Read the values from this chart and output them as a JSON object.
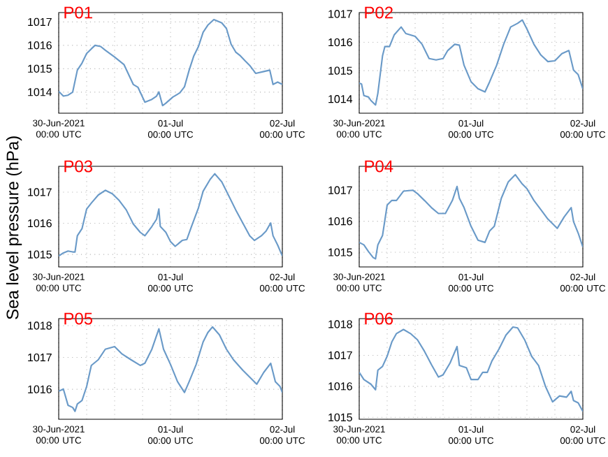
{
  "chart_data": [
    {
      "type": "line",
      "title": "P01",
      "color": "#6a9ac8",
      "grid": true,
      "xlim": [
        "2021-06-30T00:00",
        "2021-07-02T00:00"
      ],
      "ylim": [
        1013.1,
        1017.4
      ],
      "yticks": [
        1014,
        1015,
        1016,
        1017
      ],
      "xticks": [
        {
          "value": "2021-06-30T00:00",
          "label": "30-Jun-2021 00:00 UTC"
        },
        {
          "value": "2021-06-30T06:00",
          "label": null
        },
        {
          "value": "2021-06-30T12:00",
          "label": null
        },
        {
          "value": "2021-06-30T18:00",
          "label": null
        },
        {
          "value": "2021-07-01T00:00",
          "label": "01-Jul 00:00 UTC"
        },
        {
          "value": "2021-07-01T06:00",
          "label": null
        },
        {
          "value": "2021-07-01T12:00",
          "label": null
        },
        {
          "value": "2021-07-01T18:00",
          "label": null
        },
        {
          "value": "2021-07-02T00:00",
          "label": "02-Jul 00:00 UTC"
        }
      ],
      "x": [
        "2021-06-30T00:00",
        "2021-06-30T01:00",
        "2021-06-30T02:00",
        "2021-06-30T03:00",
        "2021-06-30T04:00",
        "2021-06-30T05:00",
        "2021-06-30T06:00",
        "2021-06-30T07:00",
        "2021-06-30T07:48",
        "2021-06-30T09:00",
        "2021-06-30T10:00",
        "2021-06-30T12:00",
        "2021-06-30T14:00",
        "2021-06-30T16:00",
        "2021-06-30T17:00",
        "2021-06-30T18:30",
        "2021-06-30T20:00",
        "2021-06-30T21:00",
        "2021-06-30T21:30",
        "2021-06-30T22:18",
        "2021-06-30T23:00",
        "2021-07-01T00:30",
        "2021-07-01T02:00",
        "2021-07-01T03:00",
        "2021-07-01T04:00",
        "2021-07-01T05:00",
        "2021-07-01T06:00",
        "2021-07-01T07:00",
        "2021-07-01T08:00",
        "2021-07-01T09:18",
        "2021-07-01T11:00",
        "2021-07-01T12:00",
        "2021-07-01T13:00",
        "2021-07-01T14:00",
        "2021-07-01T15:00",
        "2021-07-01T16:00",
        "2021-07-01T17:00",
        "2021-07-01T18:18",
        "2021-07-01T20:00",
        "2021-07-01T21:18",
        "2021-07-01T22:00",
        "2021-07-01T23:00",
        "2021-07-02T00:00"
      ],
      "values": [
        1014.03,
        1013.83,
        1013.87,
        1014.0,
        1014.94,
        1015.24,
        1015.65,
        1015.85,
        1016.0,
        1015.95,
        1015.79,
        1015.5,
        1015.18,
        1014.33,
        1014.21,
        1013.57,
        1013.69,
        1013.83,
        1014.01,
        1013.42,
        1013.53,
        1013.79,
        1013.97,
        1014.23,
        1014.94,
        1015.55,
        1015.95,
        1016.56,
        1016.86,
        1017.1,
        1016.96,
        1016.72,
        1016.05,
        1015.71,
        1015.55,
        1015.34,
        1015.14,
        1014.8,
        1014.88,
        1014.94,
        1014.33,
        1014.43,
        1014.33
      ]
    },
    {
      "type": "line",
      "title": "P02",
      "color": "#6a9ac8",
      "grid": true,
      "xlim": [
        "2021-06-30T00:00",
        "2021-07-02T00:00"
      ],
      "ylim": [
        1013.5,
        1017.05
      ],
      "yticks": [
        1014,
        1015,
        1016,
        1017
      ],
      "xticks": [
        {
          "value": "2021-06-30T00:00",
          "label": "30-Jun-2021 00:00 UTC"
        },
        {
          "value": "2021-06-30T06:00",
          "label": null
        },
        {
          "value": "2021-06-30T12:00",
          "label": null
        },
        {
          "value": "2021-06-30T18:00",
          "label": null
        },
        {
          "value": "2021-07-01T00:00",
          "label": "01-Jul 00:00 UTC"
        },
        {
          "value": "2021-07-01T06:00",
          "label": null
        },
        {
          "value": "2021-07-01T12:00",
          "label": null
        },
        {
          "value": "2021-07-01T18:00",
          "label": null
        },
        {
          "value": "2021-07-02T00:00",
          "label": "02-Jul 00:00 UTC"
        }
      ],
      "x": [
        "2021-06-30T00:00",
        "2021-06-30T00:30",
        "2021-06-30T01:00",
        "2021-06-30T02:00",
        "2021-06-30T02:30",
        "2021-06-30T03:30",
        "2021-06-30T04:00",
        "2021-06-30T05:00",
        "2021-06-30T05:30",
        "2021-06-30T06:30",
        "2021-06-30T07:30",
        "2021-06-30T09:00",
        "2021-06-30T10:00",
        "2021-06-30T12:00",
        "2021-06-30T13:30",
        "2021-06-30T15:00",
        "2021-06-30T16:30",
        "2021-06-30T18:00",
        "2021-06-30T19:00",
        "2021-06-30T20:30",
        "2021-06-30T21:30",
        "2021-06-30T22:30",
        "2021-07-01T00:00",
        "2021-07-01T01:30",
        "2021-07-01T03:00",
        "2021-07-01T04:00",
        "2021-07-01T05:30",
        "2021-07-01T07:00",
        "2021-07-01T08:30",
        "2021-07-01T10:00",
        "2021-07-01T11:00",
        "2021-07-01T12:00",
        "2021-07-01T13:30",
        "2021-07-01T15:00",
        "2021-07-01T16:30",
        "2021-07-01T18:00",
        "2021-07-01T19:30",
        "2021-07-01T21:00",
        "2021-07-01T22:00",
        "2021-07-01T23:00",
        "2021-07-02T00:00"
      ],
      "values": [
        1014.56,
        1014.53,
        1014.12,
        1014.07,
        1013.95,
        1013.79,
        1014.2,
        1015.52,
        1015.85,
        1015.85,
        1016.26,
        1016.54,
        1016.31,
        1016.21,
        1015.93,
        1015.43,
        1015.38,
        1015.43,
        1015.71,
        1015.93,
        1015.9,
        1015.19,
        1014.61,
        1014.36,
        1014.25,
        1014.61,
        1015.19,
        1015.93,
        1016.54,
        1016.67,
        1016.79,
        1016.47,
        1015.93,
        1015.55,
        1015.32,
        1015.35,
        1015.6,
        1015.71,
        1015.02,
        1014.86,
        1014.36
      ]
    },
    {
      "type": "line",
      "title": "P03",
      "ylabel": "Sea level pressure (hPa)",
      "color": "#6a9ac8",
      "grid": true,
      "xlim": [
        "2021-06-30T00:00",
        "2021-07-02T00:00"
      ],
      "ylim": [
        1014.6,
        1017.83
      ],
      "yticks": [
        1015,
        1016,
        1017
      ],
      "xticks": [
        {
          "value": "2021-06-30T00:00",
          "label": "30-Jun-2021 00:00 UTC"
        },
        {
          "value": "2021-06-30T06:00",
          "label": null
        },
        {
          "value": "2021-06-30T12:00",
          "label": null
        },
        {
          "value": "2021-06-30T18:00",
          "label": null
        },
        {
          "value": "2021-07-01T00:00",
          "label": "01-Jul 00:00 UTC"
        },
        {
          "value": "2021-07-01T06:00",
          "label": null
        },
        {
          "value": "2021-07-01T12:00",
          "label": null
        },
        {
          "value": "2021-07-01T18:00",
          "label": null
        },
        {
          "value": "2021-07-02T00:00",
          "label": "02-Jul 00:00 UTC"
        }
      ],
      "x": [
        "2021-06-30T00:00",
        "2021-06-30T01:00",
        "2021-06-30T02:00",
        "2021-06-30T03:00",
        "2021-06-30T03:30",
        "2021-06-30T04:00",
        "2021-06-30T05:00",
        "2021-06-30T06:00",
        "2021-06-30T07:00",
        "2021-06-30T08:30",
        "2021-06-30T10:00",
        "2021-06-30T11:30",
        "2021-06-30T13:00",
        "2021-06-30T14:30",
        "2021-06-30T16:00",
        "2021-06-30T17:30",
        "2021-06-30T18:30",
        "2021-06-30T20:00",
        "2021-06-30T21:00",
        "2021-06-30T21:30",
        "2021-06-30T21:48",
        "2021-06-30T23:00",
        "2021-07-01T00:00",
        "2021-07-01T01:00",
        "2021-07-01T02:30",
        "2021-07-01T03:30",
        "2021-07-01T04:30",
        "2021-07-01T06:00",
        "2021-07-01T07:00",
        "2021-07-01T08:30",
        "2021-07-01T09:30",
        "2021-07-01T11:00",
        "2021-07-01T12:30",
        "2021-07-01T14:00",
        "2021-07-01T15:30",
        "2021-07-01T17:00",
        "2021-07-01T18:00",
        "2021-07-01T19:30",
        "2021-07-01T20:30",
        "2021-07-01T21:30",
        "2021-07-01T22:00",
        "2021-07-01T23:00",
        "2021-07-02T00:00"
      ],
      "values": [
        1014.95,
        1015.05,
        1015.11,
        1015.08,
        1015.08,
        1015.6,
        1015.83,
        1016.46,
        1016.65,
        1016.91,
        1017.06,
        1016.95,
        1016.73,
        1016.43,
        1015.98,
        1015.71,
        1015.6,
        1015.9,
        1016.13,
        1016.46,
        1015.9,
        1015.71,
        1015.41,
        1015.26,
        1015.45,
        1015.48,
        1015.9,
        1016.5,
        1017.03,
        1017.41,
        1017.59,
        1017.33,
        1016.88,
        1016.43,
        1016.01,
        1015.6,
        1015.45,
        1015.6,
        1015.75,
        1016.01,
        1015.6,
        1015.3,
        1014.95
      ]
    },
    {
      "type": "line",
      "title": "P04",
      "color": "#6a9ac8",
      "grid": true,
      "xlim": [
        "2021-06-30T00:00",
        "2021-07-02T00:00"
      ],
      "ylim": [
        1014.53,
        1017.77
      ],
      "yticks": [
        1015,
        1016,
        1017
      ],
      "xticks": [
        {
          "value": "2021-06-30T00:00",
          "label": "30-Jun-2021 00:00 UTC"
        },
        {
          "value": "2021-06-30T06:00",
          "label": null
        },
        {
          "value": "2021-06-30T12:00",
          "label": null
        },
        {
          "value": "2021-06-30T18:00",
          "label": null
        },
        {
          "value": "2021-07-01T00:00",
          "label": "01-Jul 00:00 UTC"
        },
        {
          "value": "2021-07-01T06:00",
          "label": null
        },
        {
          "value": "2021-07-01T12:00",
          "label": null
        },
        {
          "value": "2021-07-01T18:00",
          "label": null
        },
        {
          "value": "2021-07-02T00:00",
          "label": "02-Jul 00:00 UTC"
        }
      ],
      "x": [
        "2021-06-30T00:00",
        "2021-06-30T01:00",
        "2021-06-30T02:00",
        "2021-06-30T03:00",
        "2021-06-30T03:30",
        "2021-06-30T04:00",
        "2021-06-30T05:00",
        "2021-06-30T06:00",
        "2021-06-30T07:00",
        "2021-06-30T08:00",
        "2021-06-30T09:30",
        "2021-06-30T11:30",
        "2021-06-30T12:30",
        "2021-06-30T14:00",
        "2021-06-30T15:30",
        "2021-06-30T17:00",
        "2021-06-30T18:30",
        "2021-06-30T20:00",
        "2021-06-30T21:00",
        "2021-06-30T21:30",
        "2021-06-30T22:30",
        "2021-07-01T00:00",
        "2021-07-01T01:30",
        "2021-07-01T03:00",
        "2021-07-01T04:00",
        "2021-07-01T05:00",
        "2021-07-01T06:30",
        "2021-07-01T08:00",
        "2021-07-01T09:30",
        "2021-07-01T11:00",
        "2021-07-01T12:00",
        "2021-07-01T13:30",
        "2021-07-01T15:00",
        "2021-07-01T16:30",
        "2021-07-01T18:30",
        "2021-07-01T20:00",
        "2021-07-01T21:30",
        "2021-07-01T22:00",
        "2021-07-01T23:00",
        "2021-07-02T00:00"
      ],
      "values": [
        1015.32,
        1015.24,
        1015.02,
        1014.83,
        1014.79,
        1015.24,
        1015.54,
        1016.52,
        1016.67,
        1016.67,
        1016.97,
        1017.0,
        1016.89,
        1016.67,
        1016.44,
        1016.25,
        1016.25,
        1016.67,
        1017.12,
        1016.74,
        1016.44,
        1015.84,
        1015.39,
        1015.32,
        1015.69,
        1015.84,
        1016.74,
        1017.27,
        1017.5,
        1017.2,
        1017.05,
        1016.67,
        1016.37,
        1016.07,
        1015.77,
        1016.14,
        1016.44,
        1015.99,
        1015.62,
        1015.17
      ]
    },
    {
      "type": "line",
      "title": "P05",
      "color": "#6a9ac8",
      "grid": true,
      "xlim": [
        "2021-06-30T00:00",
        "2021-07-02T00:00"
      ],
      "ylim": [
        1015.06,
        1018.22
      ],
      "yticks": [
        1016,
        1017,
        1018
      ],
      "xticks": [
        {
          "value": "2021-06-30T00:00",
          "label": "30-Jun-2021 00:00 UTC"
        },
        {
          "value": "2021-06-30T06:00",
          "label": null
        },
        {
          "value": "2021-06-30T12:00",
          "label": null
        },
        {
          "value": "2021-06-30T18:00",
          "label": null
        },
        {
          "value": "2021-07-01T00:00",
          "label": "01-Jul 00:00 UTC"
        },
        {
          "value": "2021-07-01T06:00",
          "label": null
        },
        {
          "value": "2021-07-01T12:00",
          "label": null
        },
        {
          "value": "2021-07-01T18:00",
          "label": null
        },
        {
          "value": "2021-07-02T00:00",
          "label": "02-Jul 00:00 UTC"
        }
      ],
      "x": [
        "2021-06-30T00:00",
        "2021-06-30T01:00",
        "2021-06-30T02:00",
        "2021-06-30T03:00",
        "2021-06-30T03:30",
        "2021-06-30T04:00",
        "2021-06-30T05:00",
        "2021-06-30T06:00",
        "2021-06-30T07:00",
        "2021-06-30T08:30",
        "2021-06-30T10:00",
        "2021-06-30T12:00",
        "2021-06-30T13:30",
        "2021-06-30T15:30",
        "2021-06-30T17:30",
        "2021-06-30T18:30",
        "2021-06-30T20:00",
        "2021-06-30T21:30",
        "2021-06-30T22:30",
        "2021-07-01T00:00",
        "2021-07-01T01:30",
        "2021-07-01T03:00",
        "2021-07-01T04:00",
        "2021-07-01T05:30",
        "2021-07-01T07:00",
        "2021-07-01T08:00",
        "2021-07-01T09:00",
        "2021-07-01T10:30",
        "2021-07-01T12:00",
        "2021-07-01T13:30",
        "2021-07-01T15:30",
        "2021-07-01T17:00",
        "2021-07-01T18:30",
        "2021-07-01T20:00",
        "2021-07-01T21:30",
        "2021-07-01T22:30",
        "2021-07-01T23:30",
        "2021-07-02T00:00"
      ],
      "values": [
        1015.94,
        1016.01,
        1015.5,
        1015.43,
        1015.31,
        1015.54,
        1015.65,
        1016.09,
        1016.75,
        1016.93,
        1017.26,
        1017.34,
        1017.12,
        1016.93,
        1016.75,
        1016.82,
        1017.26,
        1017.9,
        1017.26,
        1016.78,
        1016.24,
        1015.9,
        1016.24,
        1016.78,
        1017.49,
        1017.78,
        1017.96,
        1017.71,
        1017.26,
        1016.93,
        1016.6,
        1016.38,
        1016.16,
        1016.53,
        1016.82,
        1016.24,
        1016.09,
        1015.9
      ]
    },
    {
      "type": "line",
      "title": "P06",
      "color": "#6a9ac8",
      "grid": true,
      "xlim": [
        "2021-06-30T00:00",
        "2021-07-02T00:00"
      ],
      "ylim": [
        1014.94,
        1018.18
      ],
      "yticks": [
        1015,
        1016,
        1017,
        1018
      ],
      "xticks": [
        {
          "value": "2021-06-30T00:00",
          "label": "30-Jun-2021 00:00 UTC"
        },
        {
          "value": "2021-06-30T06:00",
          "label": null
        },
        {
          "value": "2021-06-30T12:00",
          "label": null
        },
        {
          "value": "2021-06-30T18:00",
          "label": null
        },
        {
          "value": "2021-07-01T00:00",
          "label": "01-Jul 00:00 UTC"
        },
        {
          "value": "2021-07-01T06:00",
          "label": null
        },
        {
          "value": "2021-07-01T12:00",
          "label": null
        },
        {
          "value": "2021-07-01T18:00",
          "label": null
        },
        {
          "value": "2021-07-02T00:00",
          "label": "02-Jul 00:00 UTC"
        }
      ],
      "x": [
        "2021-06-30T00:00",
        "2021-06-30T01:00",
        "2021-06-30T02:30",
        "2021-06-30T03:30",
        "2021-06-30T04:00",
        "2021-06-30T05:00",
        "2021-06-30T06:00",
        "2021-06-30T07:00",
        "2021-06-30T08:00",
        "2021-06-30T09:30",
        "2021-06-30T11:00",
        "2021-06-30T12:30",
        "2021-06-30T14:00",
        "2021-06-30T15:30",
        "2021-06-30T17:00",
        "2021-06-30T18:00",
        "2021-06-30T19:30",
        "2021-06-30T21:00",
        "2021-06-30T21:30",
        "2021-06-30T23:00",
        "2021-07-01T00:00",
        "2021-07-01T01:30",
        "2021-07-01T02:30",
        "2021-07-01T03:30",
        "2021-07-01T04:30",
        "2021-07-01T06:00",
        "2021-07-01T07:30",
        "2021-07-01T09:00",
        "2021-07-01T10:00",
        "2021-07-01T11:30",
        "2021-07-01T13:00",
        "2021-07-01T14:30",
        "2021-07-01T16:00",
        "2021-07-01T17:30",
        "2021-07-01T19:00",
        "2021-07-01T20:30",
        "2021-07-01T21:30",
        "2021-07-01T22:00",
        "2021-07-01T23:00",
        "2021-07-02T00:00"
      ],
      "values": [
        1016.45,
        1016.22,
        1016.07,
        1015.89,
        1016.52,
        1016.64,
        1016.97,
        1017.43,
        1017.7,
        1017.83,
        1017.7,
        1017.5,
        1017.13,
        1016.7,
        1016.3,
        1016.37,
        1016.75,
        1017.28,
        1016.67,
        1016.6,
        1016.22,
        1016.22,
        1016.45,
        1016.45,
        1016.82,
        1017.2,
        1017.65,
        1017.91,
        1017.88,
        1017.5,
        1016.97,
        1016.67,
        1015.99,
        1015.5,
        1015.69,
        1015.65,
        1015.84,
        1015.54,
        1015.47,
        1015.19
      ]
    }
  ]
}
